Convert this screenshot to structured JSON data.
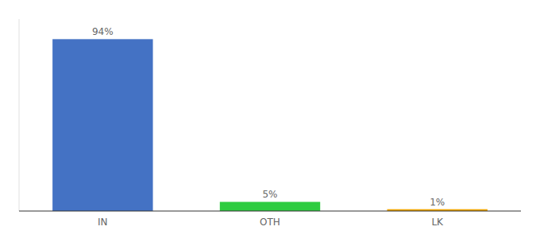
{
  "chart_data": {
    "type": "bar",
    "categories": [
      "IN",
      "OTH",
      "LK"
    ],
    "values": [
      94,
      5,
      1
    ],
    "value_labels": [
      "94%",
      "5%",
      "1%"
    ],
    "colors": [
      "#4472c4",
      "#2ecc40",
      "#f0a500"
    ],
    "ylim": [
      0,
      105
    ],
    "data_labels": true,
    "tick_labels": "x",
    "grid": false
  }
}
